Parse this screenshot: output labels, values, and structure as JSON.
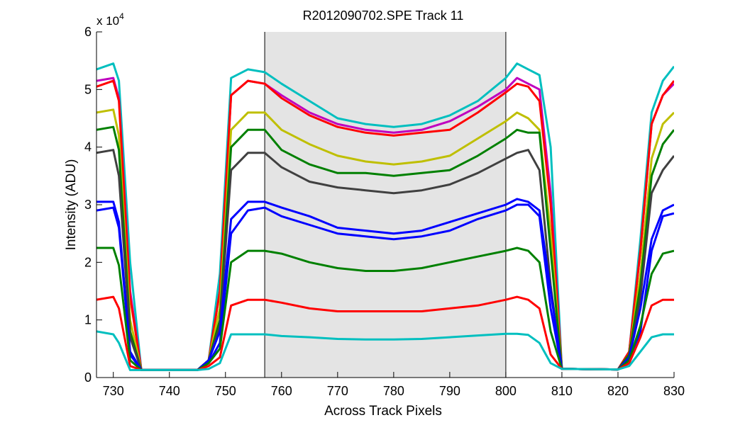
{
  "chart_data": {
    "type": "line",
    "title": "R2012090702.SPE   Track 11",
    "xlabel": "Across Track Pixels",
    "ylabel": "Intensity (ADU)",
    "y_exponent_label": "x 10",
    "y_exponent_power": "4",
    "xlim": [
      727,
      830
    ],
    "ylim": [
      0,
      60000
    ],
    "x_ticks": [
      730,
      740,
      750,
      760,
      770,
      780,
      790,
      800,
      810,
      820,
      830
    ],
    "y_ticks": [
      0,
      10000,
      20000,
      30000,
      40000,
      50000,
      60000
    ],
    "y_tick_labels": [
      "0",
      "1",
      "2",
      "3",
      "4",
      "5",
      "6"
    ],
    "shaded_region": {
      "x_start": 757,
      "x_end": 800,
      "color": "#e4e4e4"
    },
    "grid": false,
    "series": [
      {
        "color": "#00bfbf",
        "x": [
          727,
          730,
          731,
          733,
          735,
          745,
          747,
          749,
          751,
          754,
          757,
          760,
          765,
          770,
          775,
          780,
          785,
          790,
          795,
          800,
          802,
          804,
          806,
          808,
          810,
          820,
          822,
          824,
          826,
          828,
          830
        ],
        "y": [
          53500,
          54500,
          51500,
          20000,
          1300,
          1300,
          3000,
          18000,
          52000,
          53500,
          53000,
          51000,
          48000,
          45000,
          44000,
          43500,
          44000,
          45500,
          48000,
          52000,
          54500,
          53500,
          52500,
          40000,
          1500,
          1400,
          4500,
          24000,
          46000,
          51500,
          54000
        ]
      },
      {
        "color": "#bf00bf",
        "x": [
          727,
          730,
          731,
          733,
          735,
          745,
          747,
          749,
          751,
          754,
          757,
          760,
          765,
          770,
          775,
          780,
          785,
          790,
          795,
          800,
          802,
          804,
          806,
          808,
          810,
          820,
          822,
          824,
          826,
          828,
          830
        ],
        "y": [
          51500,
          52000,
          48500,
          15000,
          1300,
          1300,
          3000,
          15000,
          49000,
          51500,
          51000,
          49000,
          46000,
          44000,
          43000,
          42500,
          43000,
          44500,
          47000,
          50000,
          52000,
          51000,
          50000,
          32000,
          1500,
          1400,
          4500,
          22000,
          44000,
          49000,
          51000
        ]
      },
      {
        "color": "#ff0000",
        "x": [
          727,
          730,
          731,
          733,
          735,
          745,
          747,
          749,
          751,
          754,
          757,
          760,
          765,
          770,
          775,
          780,
          785,
          790,
          795,
          800,
          802,
          804,
          806,
          808,
          810,
          820,
          822,
          824,
          826,
          828,
          830
        ],
        "y": [
          50500,
          51500,
          48000,
          14000,
          1300,
          1300,
          3000,
          15000,
          49000,
          51500,
          51000,
          48500,
          45500,
          43500,
          42500,
          42000,
          42500,
          43000,
          46000,
          49500,
          51000,
          50500,
          48000,
          30000,
          1500,
          1400,
          4500,
          22000,
          44000,
          49000,
          51500
        ]
      },
      {
        "color": "#bfbf00",
        "x": [
          727,
          730,
          731,
          733,
          735,
          745,
          747,
          749,
          751,
          754,
          757,
          760,
          765,
          770,
          775,
          780,
          785,
          790,
          795,
          800,
          802,
          804,
          806,
          808,
          810,
          820,
          822,
          824,
          826,
          828,
          830
        ],
        "y": [
          46000,
          46500,
          42000,
          10000,
          1300,
          1300,
          3000,
          12000,
          43000,
          46000,
          46000,
          43000,
          40500,
          38500,
          37500,
          37000,
          37500,
          38500,
          41500,
          44500,
          46000,
          45000,
          43000,
          25000,
          1500,
          1400,
          4000,
          18000,
          38000,
          44000,
          46000
        ]
      },
      {
        "color": "#008000",
        "x": [
          727,
          730,
          731,
          733,
          735,
          745,
          747,
          749,
          751,
          754,
          757,
          760,
          765,
          770,
          775,
          780,
          785,
          790,
          795,
          800,
          802,
          804,
          806,
          808,
          810,
          820,
          822,
          824,
          826,
          828,
          830
        ],
        "y": [
          43000,
          43500,
          39500,
          8000,
          1300,
          1300,
          3000,
          10000,
          40000,
          43000,
          43000,
          39500,
          37000,
          35500,
          35500,
          35000,
          35500,
          36000,
          38500,
          41500,
          43000,
          42500,
          42500,
          22000,
          1500,
          1400,
          4000,
          16000,
          35000,
          40500,
          43000
        ]
      },
      {
        "color": "#404040",
        "x": [
          727,
          730,
          731,
          733,
          735,
          745,
          747,
          749,
          751,
          754,
          757,
          760,
          765,
          770,
          775,
          780,
          785,
          790,
          795,
          800,
          802,
          804,
          806,
          808,
          810,
          820,
          822,
          824,
          826,
          828,
          830
        ],
        "y": [
          39000,
          39500,
          35000,
          7000,
          1300,
          1300,
          3000,
          9000,
          36000,
          39000,
          39000,
          36500,
          34000,
          33000,
          32500,
          32000,
          32500,
          33500,
          35500,
          38000,
          39000,
          39500,
          36000,
          16000,
          1500,
          1400,
          3500,
          14000,
          32000,
          36000,
          38500
        ]
      },
      {
        "color": "#0000ff",
        "x": [
          727,
          730,
          731,
          733,
          735,
          745,
          747,
          749,
          751,
          754,
          757,
          760,
          765,
          770,
          775,
          780,
          785,
          790,
          795,
          800,
          802,
          804,
          806,
          808,
          810,
          820,
          822,
          824,
          826,
          828,
          830
        ],
        "y": [
          30500,
          30500,
          27000,
          4500,
          1300,
          1300,
          3000,
          8000,
          27500,
          30500,
          30500,
          29500,
          28000,
          26000,
          25500,
          25000,
          25500,
          27000,
          28500,
          30000,
          31000,
          30500,
          29000,
          15000,
          1500,
          1400,
          3500,
          12000,
          24000,
          29000,
          30000
        ]
      },
      {
        "color": "#0000ff",
        "x": [
          727,
          730,
          731,
          733,
          735,
          745,
          747,
          749,
          751,
          754,
          757,
          760,
          765,
          770,
          775,
          780,
          785,
          790,
          795,
          800,
          802,
          804,
          806,
          808,
          810,
          820,
          822,
          824,
          826,
          828,
          830
        ],
        "y": [
          29000,
          29500,
          26000,
          4000,
          1300,
          1300,
          2500,
          6000,
          25000,
          29000,
          29500,
          28000,
          26500,
          25000,
          24500,
          24000,
          24500,
          25500,
          27500,
          29000,
          30000,
          30000,
          28000,
          12000,
          1500,
          1400,
          2500,
          8000,
          22000,
          28000,
          28500
        ]
      },
      {
        "color": "#008000",
        "x": [
          727,
          730,
          731,
          733,
          735,
          745,
          747,
          749,
          751,
          754,
          757,
          760,
          765,
          770,
          775,
          780,
          785,
          790,
          795,
          800,
          802,
          804,
          806,
          808,
          810,
          820,
          822,
          824,
          826,
          828,
          830
        ],
        "y": [
          22500,
          22500,
          19500,
          3000,
          1300,
          1300,
          2500,
          5000,
          20000,
          22000,
          22000,
          21500,
          20000,
          19000,
          18500,
          18500,
          19000,
          20000,
          21000,
          22000,
          22500,
          22000,
          20000,
          8000,
          1500,
          1400,
          3000,
          9000,
          18000,
          21500,
          22000
        ]
      },
      {
        "color": "#ff0000",
        "x": [
          727,
          730,
          731,
          733,
          735,
          745,
          747,
          749,
          751,
          754,
          757,
          760,
          765,
          770,
          775,
          780,
          785,
          790,
          795,
          800,
          802,
          804,
          806,
          808,
          810,
          820,
          822,
          824,
          826,
          828,
          830
        ],
        "y": [
          13500,
          14000,
          12000,
          2000,
          1300,
          1300,
          2000,
          3500,
          12500,
          13500,
          13500,
          13000,
          12000,
          11500,
          11500,
          11500,
          11500,
          12000,
          12500,
          13500,
          14000,
          13500,
          12000,
          4000,
          1500,
          1400,
          2500,
          7000,
          12500,
          13500,
          13500
        ]
      },
      {
        "color": "#00bfbf",
        "x": [
          727,
          730,
          731,
          733,
          735,
          745,
          747,
          749,
          751,
          754,
          757,
          760,
          765,
          770,
          775,
          780,
          785,
          790,
          795,
          800,
          802,
          804,
          806,
          808,
          810,
          820,
          822,
          824,
          826,
          828,
          830
        ],
        "y": [
          8000,
          7500,
          6000,
          1300,
          1300,
          1300,
          1500,
          2500,
          7500,
          7500,
          7500,
          7200,
          7000,
          6700,
          6600,
          6600,
          6700,
          7000,
          7300,
          7600,
          7600,
          7400,
          6000,
          2500,
          1500,
          1400,
          2000,
          4500,
          7000,
          7500,
          7500
        ]
      }
    ]
  }
}
